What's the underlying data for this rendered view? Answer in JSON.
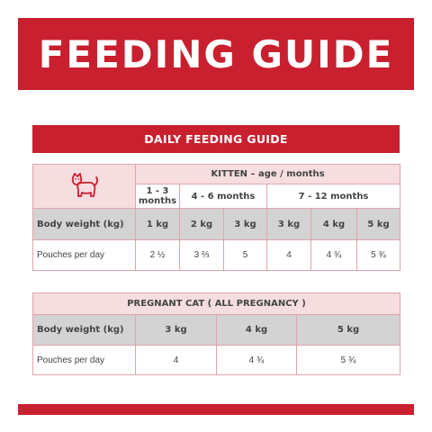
{
  "banner": {
    "title": "FEEDING GUIDE"
  },
  "daily": {
    "title": "DAILY FEEDING GUIDE",
    "kitten_header": "KITTEN – age / months",
    "icon": "cat-icon",
    "age_groups": [
      "1 - 3 months",
      "4 - 6 months",
      "7 - 12 months"
    ],
    "row_weight_label": "Body weight (kg)",
    "weights": [
      "1 kg",
      "2 kg",
      "3 kg",
      "3 kg",
      "4 kg",
      "5 kg"
    ],
    "row_pouches_label": "Pouches per day",
    "pouches": [
      "2 ½",
      "3 ⅔",
      "5",
      "4",
      "4 ¾",
      "5 ¾"
    ]
  },
  "pregnant": {
    "header": "PREGNANT CAT ( ALL PREGNANCY )",
    "row_weight_label": "Body weight (kg)",
    "weights": [
      "3 kg",
      "4 kg",
      "5 kg"
    ],
    "row_pouches_label": "Pouches per day",
    "pouches": [
      "4",
      "4 ¾",
      "5 ¾"
    ]
  },
  "colors": {
    "brand_red": "#c8202f",
    "pink": "#f5dde0",
    "grey": "#d3d3d3"
  }
}
